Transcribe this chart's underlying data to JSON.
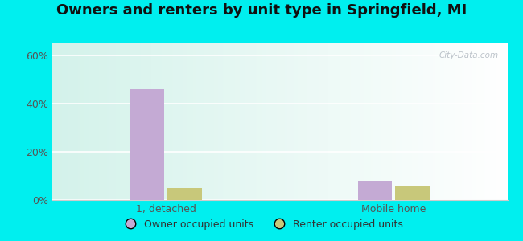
{
  "title": "Owners and renters by unit type in Springfield, MI",
  "categories": [
    "1, detached",
    "Mobile home"
  ],
  "owner_values": [
    46.0,
    8.0
  ],
  "renter_values": [
    5.0,
    6.0
  ],
  "owner_color": "#c4aad4",
  "renter_color": "#c8c87a",
  "ylim": [
    0,
    65
  ],
  "yticks": [
    0,
    20,
    40,
    60
  ],
  "ytick_labels": [
    "0%",
    "20%",
    "40%",
    "60%"
  ],
  "bar_width": 0.3,
  "group_centers": [
    1.0,
    3.0
  ],
  "xlim": [
    0.0,
    4.0
  ],
  "legend_labels": [
    "Owner occupied units",
    "Renter occupied units"
  ],
  "bg_outer": "#00EFEF",
  "watermark": "City-Data.com",
  "title_fontsize": 13,
  "tick_label_fontsize": 9
}
